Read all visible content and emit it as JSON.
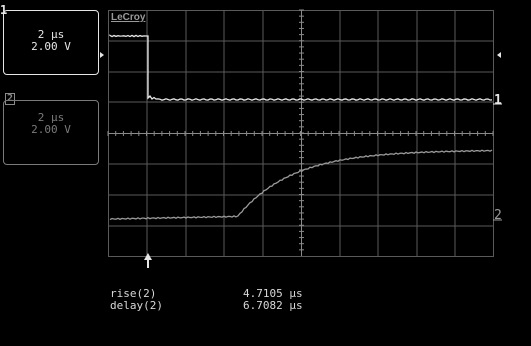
{
  "brand": "LeCroy",
  "channel1": {
    "number": "1",
    "timebase": "2 μs",
    "volts": "2.00 V",
    "trace_color": "#e8e8e8"
  },
  "channel2": {
    "number": "2",
    "timebase": "2 μs",
    "volts": "2.00 V",
    "trace_color": "#9a9a9a"
  },
  "markers": {
    "ch1_level": "1",
    "ch2_level": "2",
    "trigger_icon": "trigger-arrow-icon"
  },
  "measurements": [
    {
      "label": "rise(2)",
      "value": "4.7105 μs"
    },
    {
      "label": "delay(2)",
      "value": "6.7082 μs"
    }
  ]
}
